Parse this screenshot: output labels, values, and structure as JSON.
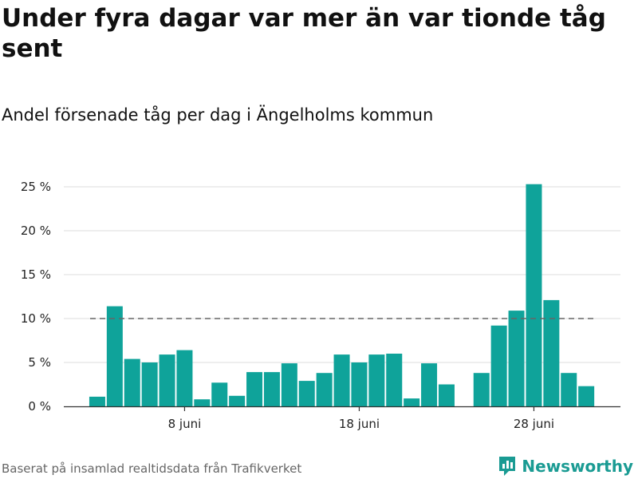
{
  "title": "Under fyra dagar var mer än var tionde tåg sent",
  "subtitle": "Andel försenade tåg per dag i Ängelholms kommun",
  "footer": "Baserat på insamlad realtidsdata från Trafikverket",
  "brand": "Newsworthy",
  "colors": {
    "bar": "#0fa39a",
    "reference_line": "#666666",
    "grid": "#dddddd",
    "brand": "#1a9b93"
  },
  "chart_data": {
    "type": "bar",
    "x": [
      "3 juni",
      "4 juni",
      "5 juni",
      "6 juni",
      "7 juni",
      "8 juni",
      "9 juni",
      "10 juni",
      "11 juni",
      "12 juni",
      "13 juni",
      "14 juni",
      "15 juni",
      "16 juni",
      "17 juni",
      "18 juni",
      "19 juni",
      "20 juni",
      "21 juni",
      "22 juni",
      "23 juni",
      "24 juni",
      "25 juni",
      "26 juni",
      "27 juni",
      "28 juni",
      "29 juni",
      "30 juni"
    ],
    "values": [
      1.1,
      11.4,
      5.4,
      5.0,
      5.9,
      6.4,
      0.8,
      2.7,
      1.2,
      3.9,
      3.9,
      4.9,
      2.9,
      3.8,
      5.9,
      5.0,
      5.9,
      6.0,
      0.9,
      4.9,
      2.5,
      null,
      3.8,
      9.2,
      10.9,
      25.3,
      12.1,
      3.8
    ],
    "values_tail": [
      2.3
    ],
    "xticks": [
      {
        "x": "8 juni",
        "label": "8 juni"
      },
      {
        "x": "18 juni",
        "label": "18 juni"
      },
      {
        "x": "28 juni",
        "label": "28 juni"
      }
    ],
    "yticks": [
      0,
      5,
      10,
      15,
      20,
      25
    ],
    "ytick_labels": [
      "0 %",
      "5 %",
      "10 %",
      "15 %",
      "20 %",
      "25 %"
    ],
    "ylim": [
      0,
      25.5
    ],
    "reference_line": 10,
    "grid": true
  }
}
